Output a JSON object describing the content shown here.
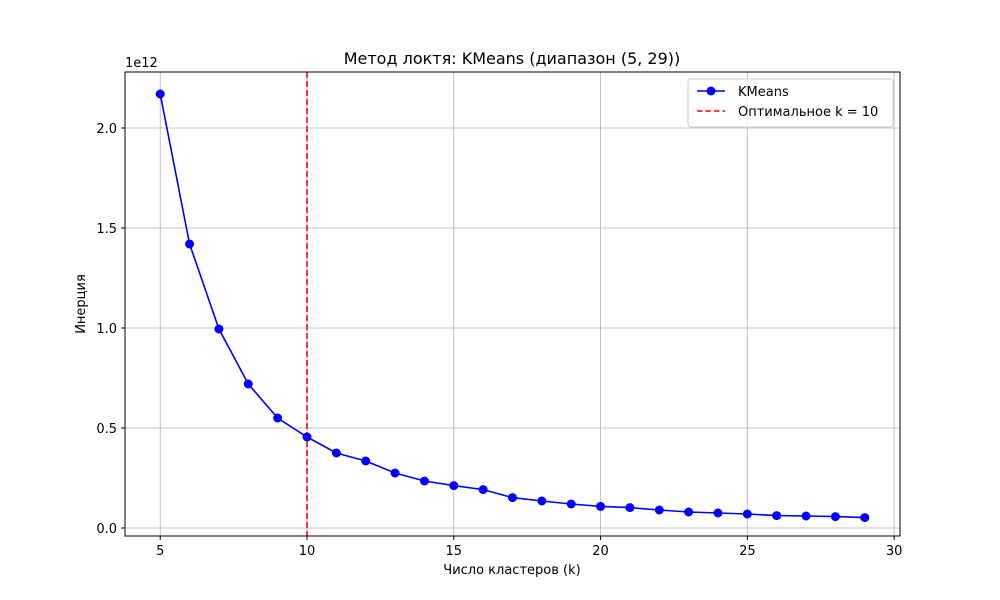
{
  "chart_data": {
    "type": "line",
    "title": "Метод локтя: KMeans (диапазон (5, 29))",
    "xlabel": "Число кластеров (k)",
    "ylabel": "Инерция",
    "y_offset_label": "1e12",
    "xlim": [
      3.8,
      30.2
    ],
    "ylim": [
      -0.04,
      2.28
    ],
    "x_ticks": [
      5,
      10,
      15,
      20,
      25,
      30
    ],
    "y_ticks": [
      0.0,
      0.5,
      1.0,
      1.5,
      2.0
    ],
    "y_tick_labels": [
      "0.0",
      "0.5",
      "1.0",
      "1.5",
      "2.0"
    ],
    "x_tick_labels": [
      "5",
      "10",
      "15",
      "20",
      "25",
      "30"
    ],
    "y_scale_multiplier": 1000000000000.0,
    "grid": true,
    "legend_position": "top-right",
    "series": [
      {
        "name": "KMeans",
        "color": "#0000ff",
        "x": [
          5,
          6,
          7,
          8,
          9,
          10,
          11,
          12,
          13,
          14,
          15,
          16,
          17,
          18,
          19,
          20,
          21,
          22,
          23,
          24,
          25,
          26,
          27,
          28,
          29
        ],
        "values": [
          2.17,
          1.42,
          0.995,
          0.72,
          0.55,
          0.455,
          0.375,
          0.335,
          0.275,
          0.235,
          0.212,
          0.192,
          0.152,
          0.135,
          0.12,
          0.108,
          0.102,
          0.09,
          0.08,
          0.075,
          0.07,
          0.062,
          0.06,
          0.057,
          0.052
        ]
      }
    ],
    "vline": {
      "x": 10,
      "name": "Оптимальное k = 10",
      "color": "#ff0000"
    }
  }
}
